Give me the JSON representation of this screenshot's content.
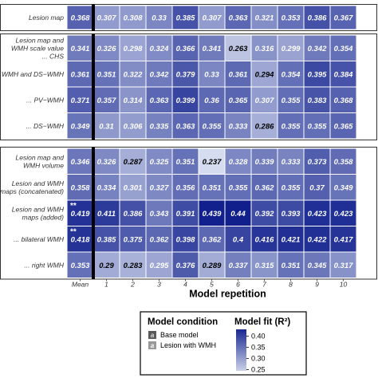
{
  "chart_data": {
    "type": "heatmap",
    "xlabel": "Model repetition",
    "columns": [
      "Mean",
      "1",
      "2",
      "3",
      "4",
      "5",
      "6",
      "7",
      "8",
      "9",
      "10"
    ],
    "panels": [
      {
        "rows": [
          {
            "label": [
              "Lesion map"
            ],
            "values": [
              0.368,
              0.307,
              0.308,
              0.33,
              0.385,
              0.307,
              0.363,
              0.321,
              0.353,
              0.386,
              0.367
            ]
          }
        ]
      },
      {
        "rows": [
          {
            "label": [
              "Lesion map and",
              "WMH scale value",
              "... CHS"
            ],
            "values": [
              0.341,
              0.326,
              0.298,
              0.324,
              0.366,
              0.341,
              0.263,
              0.316,
              0.299,
              0.342,
              0.354
            ]
          },
          {
            "label": [
              "... WMH and DS−WMH"
            ],
            "values": [
              0.361,
              0.351,
              0.322,
              0.342,
              0.379,
              0.33,
              0.361,
              0.294,
              0.354,
              0.395,
              0.384
            ]
          },
          {
            "label": [
              "... PV−WMH"
            ],
            "values": [
              0.371,
              0.357,
              0.314,
              0.363,
              0.399,
              0.36,
              0.365,
              0.307,
              0.355,
              0.383,
              0.368
            ]
          },
          {
            "label": [
              "... DS−WMH"
            ],
            "values": [
              0.349,
              0.31,
              0.306,
              0.335,
              0.363,
              0.355,
              0.333,
              0.286,
              0.355,
              0.355,
              0.365
            ]
          }
        ]
      },
      {
        "rows": [
          {
            "label": [
              "Lesion map and",
              "WMH volume"
            ],
            "values": [
              0.346,
              0.326,
              0.287,
              0.325,
              0.351,
              0.237,
              0.328,
              0.339,
              0.333,
              0.373,
              0.358
            ]
          },
          {
            "label": [
              "Lesion and WMH",
              "maps (concatenated)"
            ],
            "values": [
              0.358,
              0.334,
              0.301,
              0.327,
              0.356,
              0.351,
              0.355,
              0.362,
              0.355,
              0.37,
              0.349
            ]
          },
          {
            "label": [
              "Lesion and WMH",
              "maps (added)"
            ],
            "marker": "**",
            "values": [
              0.419,
              0.411,
              0.386,
              0.343,
              0.391,
              0.439,
              0.44,
              0.392,
              0.393,
              0.423,
              0.423
            ]
          },
          {
            "label": [
              "... bilateral WMH"
            ],
            "marker": "**",
            "values": [
              0.418,
              0.385,
              0.375,
              0.362,
              0.398,
              0.362,
              0.4,
              0.416,
              0.421,
              0.422,
              0.417
            ]
          },
          {
            "label": [
              "... right WMH"
            ],
            "values": [
              0.353,
              0.29,
              0.283,
              0.295,
              0.376,
              0.289,
              0.337,
              0.315,
              0.351,
              0.345,
              0.317
            ]
          }
        ]
      }
    ],
    "base_model_rows": [
      "Lesion map"
    ],
    "color_scale": {
      "min": 0.23,
      "max": 0.445,
      "low_color": "#dce3f2",
      "high_color": "#0b1a8a"
    },
    "legend": {
      "condition_title": "Model condition",
      "condition_items": [
        {
          "swatch_letter": "a",
          "label": "Base model"
        },
        {
          "swatch_letter": "a",
          "label": "Lesion with WMH"
        }
      ],
      "fit_title": "Model fit (R²)",
      "fit_ticks": [
        "0.40",
        "0.35",
        "0.30",
        "0.25"
      ],
      "fit_tick_values": [
        0.4,
        0.35,
        0.3,
        0.25
      ]
    }
  }
}
